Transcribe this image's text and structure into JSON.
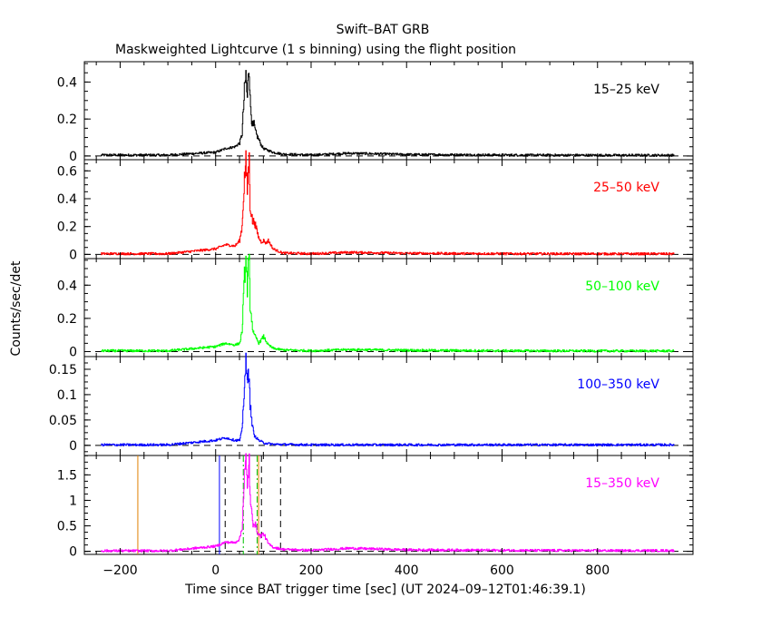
{
  "header": {
    "title": "Swift–BAT GRB",
    "subtitle": "Maskweighted Lightcurve (1 s binning) using the flight position"
  },
  "axes": {
    "xlabel": "Time since BAT trigger time [sec] (UT 2024–09–12T01:46:39.1)",
    "ylabel": "Counts/sec/det"
  },
  "chart_data": [
    {
      "type": "line",
      "band": "15–25 keV",
      "color": "#000000",
      "xlim": [
        -275,
        1000
      ],
      "ylim": [
        -0.02,
        0.51
      ],
      "yticks": [
        0,
        0.2,
        0.4
      ],
      "ytick_labels": [
        "0",
        "0.2",
        "0.4"
      ],
      "x": [
        -240,
        -100,
        0,
        20,
        40,
        50,
        55,
        60,
        63,
        66,
        68,
        70,
        72,
        75,
        78,
        80,
        83,
        86,
        90,
        95,
        100,
        110,
        120,
        140,
        200,
        280,
        400,
        600,
        800,
        960
      ],
      "values": [
        0.005,
        0.005,
        0.02,
        0.04,
        0.05,
        0.07,
        0.12,
        0.35,
        0.44,
        0.3,
        0.47,
        0.49,
        0.3,
        0.2,
        0.15,
        0.17,
        0.13,
        0.11,
        0.09,
        0.06,
        0.04,
        0.03,
        0.02,
        0.01,
        0.005,
        0.015,
        0.008,
        0.005,
        0.004,
        0.004
      ]
    },
    {
      "type": "line",
      "band": "25–50 keV",
      "color": "#ff0000",
      "xlim": [
        -275,
        1000
      ],
      "ylim": [
        -0.03,
        0.68
      ],
      "yticks": [
        0,
        0.2,
        0.4,
        0.6
      ],
      "ytick_labels": [
        "0",
        "0.2",
        "0.4",
        "0.6"
      ],
      "x": [
        -240,
        -100,
        0,
        20,
        40,
        50,
        55,
        60,
        63,
        66,
        68,
        70,
        72,
        75,
        78,
        80,
        85,
        90,
        95,
        100,
        105,
        110,
        120,
        140,
        200,
        280,
        400,
        600,
        800,
        960
      ],
      "values": [
        0.005,
        0.005,
        0.04,
        0.07,
        0.06,
        0.1,
        0.2,
        0.55,
        0.66,
        0.45,
        0.6,
        0.67,
        0.35,
        0.28,
        0.22,
        0.25,
        0.18,
        0.12,
        0.09,
        0.1,
        0.08,
        0.1,
        0.04,
        0.01,
        0.005,
        0.015,
        0.008,
        0.005,
        0.004,
        0.004
      ]
    },
    {
      "type": "line",
      "band": "50–100 keV",
      "color": "#00ff00",
      "xlim": [
        -275,
        1000
      ],
      "ylim": [
        -0.03,
        0.56
      ],
      "yticks": [
        0,
        0.2,
        0.4
      ],
      "ytick_labels": [
        "0",
        "0.2",
        "0.4"
      ],
      "x": [
        -240,
        -100,
        0,
        20,
        40,
        50,
        55,
        60,
        63,
        66,
        68,
        70,
        72,
        75,
        78,
        80,
        85,
        90,
        95,
        100,
        110,
        120,
        140,
        200,
        280,
        400,
        600,
        800,
        960
      ],
      "values": [
        0.005,
        0.005,
        0.03,
        0.05,
        0.04,
        0.05,
        0.12,
        0.45,
        0.55,
        0.38,
        0.5,
        0.52,
        0.28,
        0.2,
        0.12,
        0.1,
        0.08,
        0.05,
        0.07,
        0.09,
        0.04,
        0.02,
        0.01,
        0.005,
        0.012,
        0.008,
        0.005,
        0.004,
        0.004
      ]
    },
    {
      "type": "line",
      "band": "100–350 keV",
      "color": "#0000ff",
      "xlim": [
        -275,
        1000
      ],
      "ylim": [
        -0.02,
        0.175
      ],
      "yticks": [
        0,
        0.05,
        0.1,
        0.15
      ],
      "ytick_labels": [
        "0",
        "0.05",
        "0.1",
        "0.15"
      ],
      "x": [
        -240,
        -100,
        0,
        20,
        40,
        50,
        55,
        60,
        63,
        66,
        68,
        70,
        72,
        75,
        80,
        90,
        100,
        120,
        200,
        400,
        600,
        800,
        960
      ],
      "values": [
        0.001,
        0.001,
        0.01,
        0.015,
        0.01,
        0.01,
        0.03,
        0.12,
        0.16,
        0.12,
        0.14,
        0.15,
        0.08,
        0.05,
        0.02,
        0.01,
        0.005,
        0.002,
        0.001,
        0.001,
        0.001,
        0.001,
        0.001
      ]
    },
    {
      "type": "line",
      "band": "15–350 keV",
      "color": "#ff00ff",
      "xlim": [
        -275,
        1000
      ],
      "ylim": [
        -0.06,
        1.88
      ],
      "yticks": [
        0,
        0.5,
        1,
        1.5
      ],
      "ytick_labels": [
        "0",
        "0.5",
        "1",
        "1.5"
      ],
      "x": [
        -240,
        -100,
        0,
        20,
        40,
        50,
        55,
        60,
        63,
        66,
        68,
        70,
        72,
        75,
        78,
        80,
        85,
        90,
        95,
        100,
        110,
        120,
        140,
        200,
        280,
        400,
        600,
        800,
        960
      ],
      "values": [
        0.01,
        0.01,
        0.1,
        0.18,
        0.17,
        0.25,
        0.45,
        1.5,
        1.75,
        1.2,
        1.6,
        1.82,
        1.0,
        0.75,
        0.55,
        0.6,
        0.45,
        0.32,
        0.3,
        0.35,
        0.15,
        0.08,
        0.04,
        0.02,
        0.06,
        0.03,
        0.02,
        0.015,
        0.015
      ],
      "vlines": [
        {
          "x": -163,
          "color": "#e08000",
          "style": "solid"
        },
        {
          "x": 8,
          "color": "#0000ff",
          "style": "solid"
        },
        {
          "x": 20,
          "color": "#000000",
          "style": "dashed"
        },
        {
          "x": 58,
          "color": "#00c000",
          "style": "dashdot"
        },
        {
          "x": 87,
          "color": "#00c000",
          "style": "dashdot"
        },
        {
          "x": 90,
          "color": "#e08000",
          "style": "solid"
        },
        {
          "x": 96,
          "color": "#000000",
          "style": "dashed"
        },
        {
          "x": 136,
          "color": "#000000",
          "style": "dashed"
        }
      ]
    }
  ],
  "xaxis": {
    "ticks": [
      -200,
      0,
      200,
      400,
      600,
      800
    ],
    "tick_labels": [
      "−200",
      "0",
      "200",
      "400",
      "600",
      "800"
    ]
  }
}
